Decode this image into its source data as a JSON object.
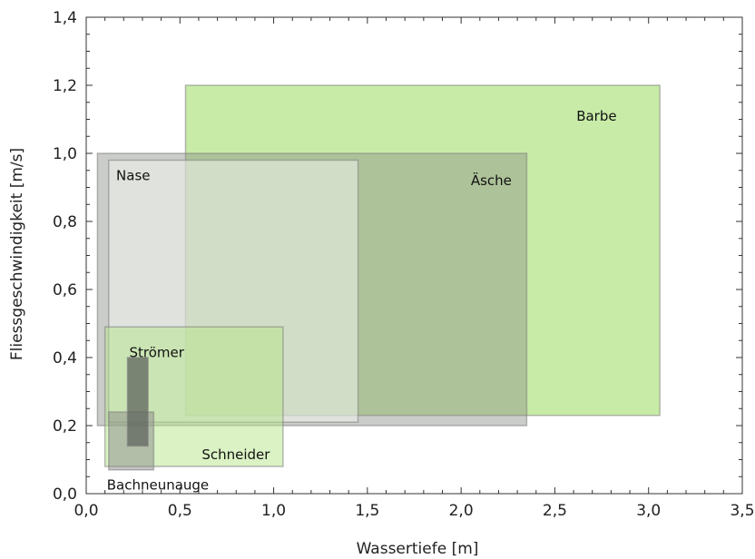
{
  "chart_data": {
    "type": "range-rectangles",
    "xlabel": "Wassertiefe [m]",
    "ylabel": "Fliessgeschwindigkeit [m/s]",
    "xlim": [
      0,
      3.5
    ],
    "ylim": [
      0,
      1.4
    ],
    "x_ticks": [
      0.0,
      0.5,
      1.0,
      1.5,
      2.0,
      2.5,
      3.0,
      3.5
    ],
    "y_ticks": [
      0.0,
      0.2,
      0.4,
      0.6,
      0.8,
      1.0,
      1.2,
      1.4
    ],
    "x_tick_labels": [
      "0,0",
      "0,5",
      "1,0",
      "1,5",
      "2,0",
      "2,5",
      "3,0",
      "3,5"
    ],
    "y_tick_labels": [
      "0,0",
      "0,2",
      "0,4",
      "0,6",
      "0,8",
      "1,0",
      "1,2",
      "1,4"
    ],
    "grid": false,
    "series": [
      {
        "name": "Barbe",
        "x_range": [
          0.53,
          3.06
        ],
        "y_range": [
          0.23,
          1.2
        ],
        "color": "#b6e58a",
        "opacity": 0.75,
        "label_pos": [
          2.83,
          1.11
        ],
        "label_anchor": "end"
      },
      {
        "name": "Äsche",
        "x_range": [
          0.06,
          2.35
        ],
        "y_range": [
          0.2,
          1.0
        ],
        "color": "#8c918a",
        "opacity": 0.45,
        "label_pos": [
          2.27,
          0.92
        ],
        "label_anchor": "end"
      },
      {
        "name": "Nase",
        "x_range": [
          0.12,
          1.45
        ],
        "y_range": [
          0.21,
          0.98
        ],
        "color": "#f0f4ec",
        "opacity": 0.55,
        "label_pos": [
          0.16,
          0.935
        ],
        "label_anchor": "start"
      },
      {
        "name": "Schneider",
        "x_range": [
          0.1,
          1.05
        ],
        "y_range": [
          0.08,
          0.49
        ],
        "color": "#b6e58a",
        "opacity": 0.5,
        "label_pos": [
          0.98,
          0.115
        ],
        "label_anchor": "end"
      },
      {
        "name": "Bachneunauge",
        "x_range": [
          0.12,
          0.36
        ],
        "y_range": [
          0.07,
          0.24
        ],
        "color": "#8a8a8a",
        "opacity": 0.5,
        "label_pos": [
          0.11,
          0.025
        ],
        "label_anchor": "start"
      },
      {
        "name": "Strömer",
        "x_range": [
          0.22,
          0.33
        ],
        "y_range": [
          0.14,
          0.4
        ],
        "color": "#5f645d",
        "opacity": 0.75,
        "label_pos": [
          0.23,
          0.415
        ],
        "label_anchor": "start"
      }
    ]
  }
}
